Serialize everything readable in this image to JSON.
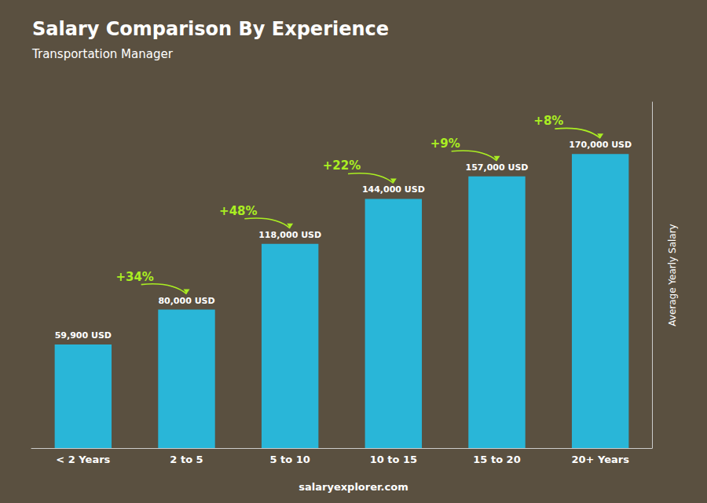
{
  "chart_data": {
    "type": "bar",
    "title": "Salary Comparison By Experience",
    "subtitle": "Transportation Manager",
    "categories": [
      "< 2 Years",
      "2 to 5",
      "5 to 10",
      "10 to 15",
      "15 to 20",
      "20+ Years"
    ],
    "values": [
      59900,
      80000,
      118000,
      144000,
      157000,
      170000
    ],
    "value_labels": [
      "59,900 USD",
      "80,000 USD",
      "118,000 USD",
      "144,000 USD",
      "157,000 USD",
      "170,000 USD"
    ],
    "data_labels": true,
    "color": "#29B6D8",
    "ylabel": "Average Yearly Salary",
    "ylim": [
      0,
      200000
    ],
    "grid": false,
    "tick_labels": "x",
    "annotations": [
      {
        "text": "+34%",
        "color": "#AAEE22"
      },
      {
        "text": "+48%",
        "color": "#AAEE22"
      },
      {
        "text": "+22%",
        "color": "#AAEE22"
      },
      {
        "text": "+9%",
        "color": "#AAEE22"
      },
      {
        "text": "+8%",
        "color": "#AAEE22"
      }
    ],
    "footer": "salaryexplorer.com"
  }
}
